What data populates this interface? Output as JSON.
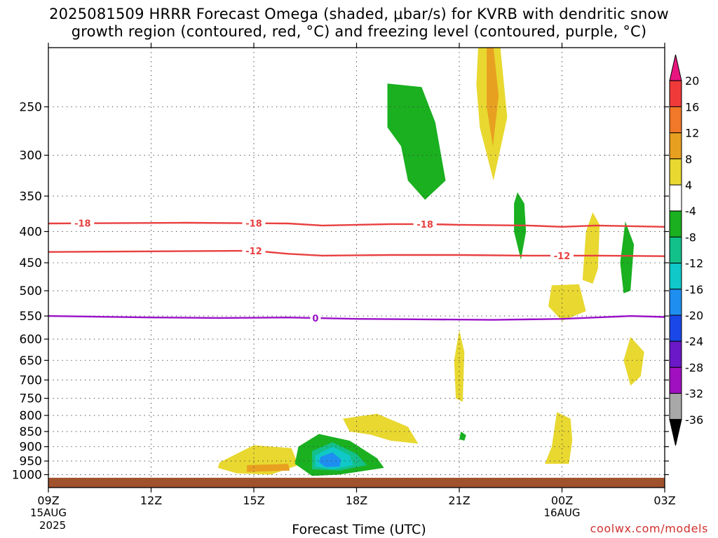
{
  "title": {
    "line1": "2025081509 HRRR Forecast Omega (shaded, μbar/s) for KVRB with dendritic snow",
    "line2": "growth region (contoured, red, °C) and freezing level (contoured, purple, °C)"
  },
  "credit": "coolwx.com/models",
  "chart_data": {
    "type": "contour",
    "xlabel": "Forecast Time (UTC)",
    "ylabel": "",
    "x_range_hours": [
      0,
      18
    ],
    "y_range_hPa": [
      200,
      1050
    ],
    "y_log_scale": true,
    "grid": true,
    "x_ticks": [
      {
        "hour": 0,
        "label": "09Z",
        "label2": "15AUG",
        "label3": "2025"
      },
      {
        "hour": 3,
        "label": "12Z"
      },
      {
        "hour": 6,
        "label": "15Z"
      },
      {
        "hour": 9,
        "label": "18Z"
      },
      {
        "hour": 12,
        "label": "21Z"
      },
      {
        "hour": 15,
        "label": "00Z",
        "label2": "16AUG"
      },
      {
        "hour": 18,
        "label": "03Z"
      }
    ],
    "y_ticks": [
      250,
      300,
      350,
      400,
      450,
      500,
      550,
      600,
      650,
      700,
      750,
      800,
      850,
      900,
      950,
      1000
    ],
    "colorbar": {
      "labels": [
        "20",
        "16",
        "12",
        "8",
        "4",
        "-4",
        "-8",
        "-12",
        "-16",
        "-20",
        "-24",
        "-28",
        "-32",
        "-36"
      ],
      "colors": [
        "#e8157f",
        "#f03a3a",
        "#f07828",
        "#e8a020",
        "#e8d830",
        "#ffffff",
        "#1ab020",
        "#12c08a",
        "#10c8c8",
        "#1e8ef0",
        "#1a48e8",
        "#6a18c8",
        "#a010c0",
        "#a8a8a8",
        "#000000"
      ]
    },
    "contours": [
      {
        "name": "dendritic-18",
        "color": "#e84040",
        "label": "-18",
        "points": [
          [
            0,
            388
          ],
          [
            4,
            387
          ],
          [
            7,
            388
          ],
          [
            8,
            391
          ],
          [
            10,
            389
          ],
          [
            11,
            389
          ],
          [
            12,
            390
          ],
          [
            14,
            391
          ],
          [
            15,
            393
          ],
          [
            16,
            391
          ],
          [
            18,
            393
          ]
        ],
        "label_hours": [
          1,
          6,
          11
        ]
      },
      {
        "name": "dendritic-12",
        "color": "#e84040",
        "label": "-12",
        "points": [
          [
            0,
            432
          ],
          [
            3,
            431
          ],
          [
            6,
            430
          ],
          [
            7,
            435
          ],
          [
            8,
            438
          ],
          [
            10,
            437
          ],
          [
            12,
            437
          ],
          [
            14,
            438
          ],
          [
            16,
            438
          ],
          [
            18,
            439
          ]
        ],
        "label_hours": [
          6,
          15
        ]
      },
      {
        "name": "freezing-level",
        "color": "#9a10c8",
        "label": "0",
        "points": [
          [
            0,
            550
          ],
          [
            3,
            553
          ],
          [
            5,
            554
          ],
          [
            7,
            553
          ],
          [
            9,
            556
          ],
          [
            11,
            557
          ],
          [
            13,
            558
          ],
          [
            15,
            556
          ],
          [
            16,
            553
          ],
          [
            17,
            550
          ],
          [
            18,
            552
          ]
        ],
        "label_hours": [
          7.8
        ]
      }
    ],
    "omega_regions": [
      {
        "name": "upper-pos-4",
        "color": "#e8d830",
        "points": [
          [
            12.55,
            200
          ],
          [
            13.2,
            200
          ],
          [
            13.4,
            260
          ],
          [
            13.0,
            330
          ],
          [
            12.6,
            270
          ],
          [
            12.5,
            230
          ]
        ]
      },
      {
        "name": "upper-pos-8",
        "color": "#e8a020",
        "points": [
          [
            12.8,
            200
          ],
          [
            13.0,
            200
          ],
          [
            13.15,
            240
          ],
          [
            12.98,
            290
          ],
          [
            12.8,
            250
          ]
        ]
      },
      {
        "name": "upper-neg-4",
        "color": "#1ab020",
        "points": [
          [
            9.9,
            229
          ],
          [
            10.9,
            232
          ],
          [
            11.3,
            265
          ],
          [
            11.6,
            330
          ],
          [
            11.0,
            355
          ],
          [
            10.5,
            330
          ],
          [
            10.3,
            290
          ],
          [
            9.9,
            270
          ]
        ]
      },
      {
        "name": "mid-neg-a",
        "color": "#1ab020",
        "points": [
          [
            13.7,
            345
          ],
          [
            13.9,
            360
          ],
          [
            13.95,
            400
          ],
          [
            13.8,
            445
          ],
          [
            13.6,
            400
          ],
          [
            13.6,
            360
          ]
        ]
      },
      {
        "name": "mid-pos-a",
        "color": "#e8d830",
        "points": [
          [
            15.9,
            372
          ],
          [
            16.1,
            390
          ],
          [
            16.05,
            460
          ],
          [
            15.9,
            487
          ],
          [
            15.6,
            480
          ],
          [
            15.7,
            400
          ]
        ]
      },
      {
        "name": "mid-neg-b",
        "color": "#1ab020",
        "points": [
          [
            16.85,
            385
          ],
          [
            17.1,
            420
          ],
          [
            17.0,
            500
          ],
          [
            16.8,
            505
          ],
          [
            16.7,
            450
          ]
        ]
      },
      {
        "name": "mid-pos-b",
        "color": "#e8d830",
        "points": [
          [
            14.7,
            490
          ],
          [
            15.5,
            488
          ],
          [
            15.7,
            540
          ],
          [
            15.0,
            560
          ],
          [
            14.6,
            530
          ]
        ]
      },
      {
        "name": "low-pos-a",
        "color": "#e8d830",
        "points": [
          [
            12.0,
            580
          ],
          [
            12.15,
            630
          ],
          [
            12.1,
            760
          ],
          [
            11.9,
            750
          ],
          [
            11.85,
            650
          ]
        ]
      },
      {
        "name": "low-pos-b",
        "color": "#e8d830",
        "points": [
          [
            17.0,
            595
          ],
          [
            17.4,
            630
          ],
          [
            17.3,
            690
          ],
          [
            17.0,
            715
          ],
          [
            16.8,
            650
          ]
        ]
      },
      {
        "name": "low-pos-c",
        "color": "#e8d830",
        "points": [
          [
            14.85,
            790
          ],
          [
            15.25,
            810
          ],
          [
            15.3,
            880
          ],
          [
            15.2,
            960
          ],
          [
            14.5,
            960
          ],
          [
            14.7,
            900
          ]
        ]
      },
      {
        "name": "low-pos-d",
        "color": "#e8d830",
        "points": [
          [
            8.6,
            810
          ],
          [
            9.6,
            795
          ],
          [
            10.5,
            835
          ],
          [
            10.8,
            890
          ],
          [
            10.0,
            880
          ],
          [
            9.4,
            860
          ],
          [
            8.8,
            850
          ]
        ]
      },
      {
        "name": "low-neg-c",
        "color": "#1ab020",
        "points": [
          [
            12.05,
            850
          ],
          [
            12.2,
            862
          ],
          [
            12.15,
            880
          ],
          [
            12.0,
            875
          ]
        ]
      },
      {
        "name": "low-pos-e",
        "color": "#e8d830",
        "points": [
          [
            5.0,
            955
          ],
          [
            6.0,
            895
          ],
          [
            7.1,
            905
          ],
          [
            7.3,
            965
          ],
          [
            6.5,
            1000
          ],
          [
            5.5,
            995
          ],
          [
            4.95,
            975
          ]
        ]
      },
      {
        "name": "low-pos-e-core",
        "color": "#e8a020",
        "points": [
          [
            5.8,
            965
          ],
          [
            7.0,
            960
          ],
          [
            7.05,
            985
          ],
          [
            5.8,
            990
          ]
        ]
      },
      {
        "name": "low-neg-d",
        "color": "#1ab020",
        "points": [
          [
            7.3,
            900
          ],
          [
            7.9,
            858
          ],
          [
            8.8,
            880
          ],
          [
            9.6,
            940
          ],
          [
            9.8,
            975
          ],
          [
            8.5,
            1000
          ],
          [
            7.7,
            1005
          ],
          [
            7.2,
            960
          ]
        ]
      },
      {
        "name": "low-neg-d2",
        "color": "#12c08a",
        "points": [
          [
            7.7,
            915
          ],
          [
            8.3,
            885
          ],
          [
            9.0,
            925
          ],
          [
            9.3,
            965
          ],
          [
            8.5,
            985
          ],
          [
            7.7,
            980
          ]
        ]
      },
      {
        "name": "low-neg-d3",
        "color": "#10c8c8",
        "points": [
          [
            7.8,
            930
          ],
          [
            8.3,
            900
          ],
          [
            8.8,
            930
          ],
          [
            8.9,
            965
          ],
          [
            8.3,
            980
          ],
          [
            7.8,
            970
          ]
        ]
      },
      {
        "name": "low-neg-d4",
        "color": "#1e8ef0",
        "points": [
          [
            7.95,
            935
          ],
          [
            8.3,
            920
          ],
          [
            8.55,
            945
          ],
          [
            8.5,
            970
          ],
          [
            8.1,
            972
          ],
          [
            7.9,
            955
          ]
        ]
      }
    ],
    "surface_level_hPa": 1012,
    "surface_color": "#a0522d"
  }
}
